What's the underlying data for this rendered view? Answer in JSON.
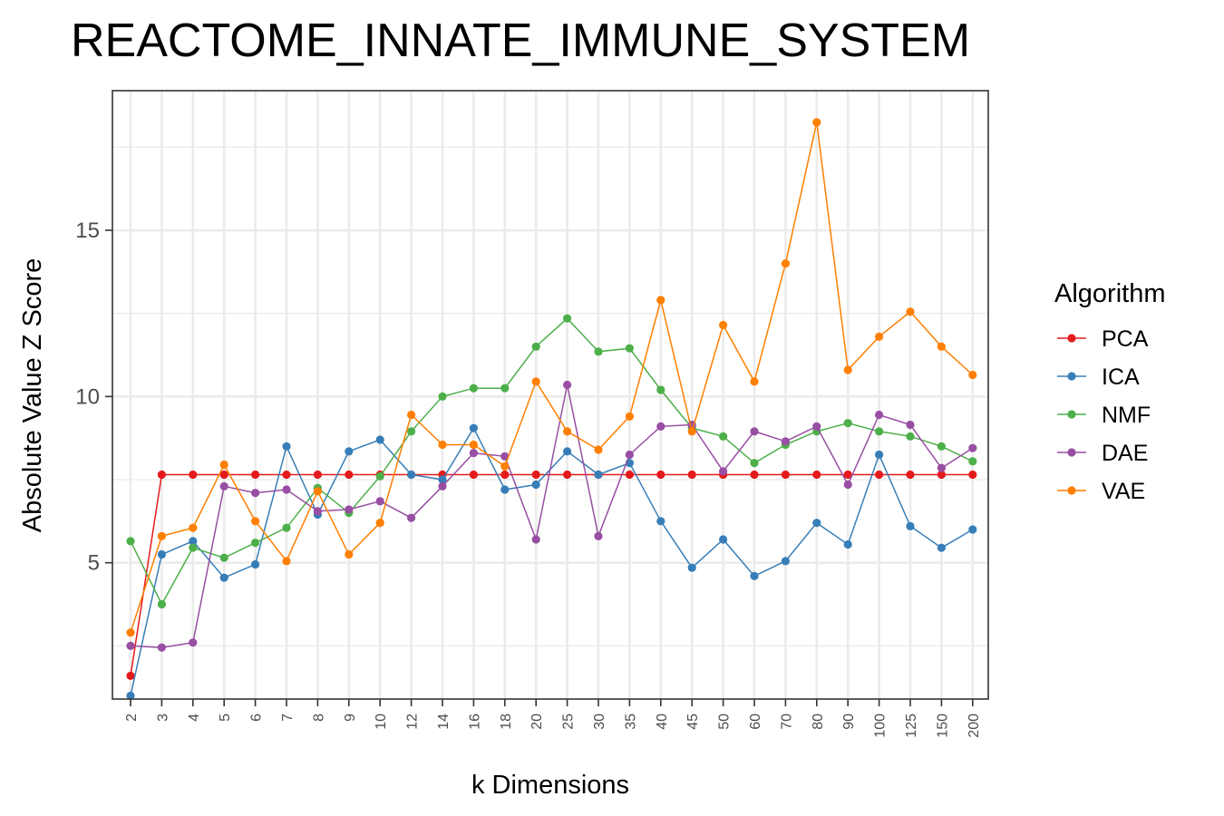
{
  "chart_data": {
    "type": "line",
    "title": "REACTOME_INNATE_IMMUNE_SYSTEM",
    "xlabel": "k Dimensions",
    "ylabel": "Absolute Value Z Score",
    "categories": [
      "2",
      "3",
      "4",
      "5",
      "6",
      "7",
      "8",
      "9",
      "10",
      "12",
      "14",
      "16",
      "18",
      "20",
      "25",
      "30",
      "35",
      "40",
      "45",
      "50",
      "60",
      "70",
      "80",
      "90",
      "100",
      "125",
      "150",
      "200"
    ],
    "yticks": [
      5,
      10,
      15
    ],
    "ylim": [
      0.9,
      19.2
    ],
    "grid": true,
    "legend": {
      "title": "Algorithm",
      "placement": "right"
    },
    "series": [
      {
        "name": "PCA",
        "color": "#e41a1c",
        "values": [
          1.6,
          7.65,
          7.65,
          7.65,
          7.65,
          7.65,
          7.65,
          7.65,
          7.65,
          7.65,
          7.65,
          7.65,
          7.65,
          7.65,
          7.65,
          7.65,
          7.65,
          7.65,
          7.65,
          7.65,
          7.65,
          7.65,
          7.65,
          7.65,
          7.65,
          7.65,
          7.65,
          7.65
        ]
      },
      {
        "name": "ICA",
        "color": "#377eb8",
        "values": [
          1.0,
          5.25,
          5.65,
          4.55,
          4.95,
          8.5,
          6.45,
          8.35,
          8.7,
          7.65,
          7.5,
          9.05,
          7.2,
          7.35,
          8.35,
          7.65,
          8.0,
          6.25,
          4.85,
          5.7,
          4.6,
          5.05,
          6.2,
          5.55,
          8.25,
          6.1,
          5.45,
          6.0
        ]
      },
      {
        "name": "NMF",
        "color": "#4daf4a",
        "values": [
          5.65,
          3.75,
          5.45,
          5.15,
          5.6,
          6.05,
          7.25,
          6.5,
          7.6,
          8.95,
          10.0,
          10.25,
          10.25,
          11.5,
          12.35,
          11.35,
          11.45,
          10.2,
          9.05,
          8.8,
          8.0,
          8.55,
          8.95,
          9.2,
          8.95,
          8.8,
          8.5,
          8.05
        ]
      },
      {
        "name": "DAE",
        "color": "#984ea3",
        "values": [
          2.5,
          2.45,
          2.6,
          7.3,
          7.1,
          7.2,
          6.55,
          6.6,
          6.85,
          6.35,
          7.3,
          8.3,
          8.2,
          5.7,
          10.35,
          5.8,
          8.25,
          9.1,
          9.15,
          7.75,
          8.95,
          8.65,
          9.1,
          7.35,
          9.45,
          9.15,
          7.85,
          8.45
        ]
      },
      {
        "name": "VAE",
        "color": "#ff7f00",
        "values": [
          2.9,
          5.8,
          6.05,
          7.95,
          6.25,
          5.05,
          7.15,
          5.25,
          6.2,
          9.45,
          8.55,
          8.55,
          7.9,
          10.45,
          8.95,
          8.4,
          9.4,
          12.9,
          8.95,
          12.15,
          10.45,
          14.0,
          18.25,
          10.8,
          11.8,
          12.55,
          11.5,
          10.65
        ]
      }
    ]
  }
}
